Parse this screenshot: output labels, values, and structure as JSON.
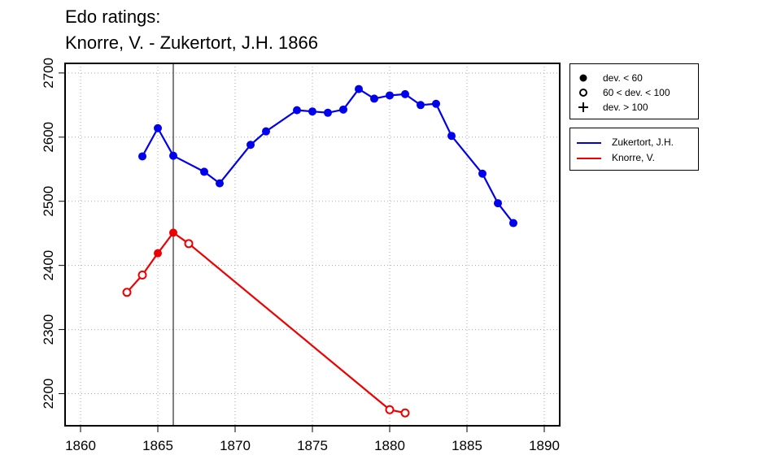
{
  "chart_data": {
    "type": "line",
    "title": "Edo ratings:",
    "subtitle": "Knorre, V. - Zukertort, J.H. 1866",
    "xlabel": "",
    "ylabel": "",
    "xlim": [
      1859,
      1891
    ],
    "ylim": [
      2150,
      2715
    ],
    "x_ticks": [
      1860,
      1865,
      1870,
      1875,
      1880,
      1885,
      1890
    ],
    "y_ticks": [
      2200,
      2300,
      2400,
      2500,
      2600,
      2700
    ],
    "grid": true,
    "reference_line_x": 1866,
    "marker_legend": [
      {
        "marker": "filled-circle",
        "label": "dev. < 60"
      },
      {
        "marker": "open-circle",
        "label": "60 < dev. < 100"
      },
      {
        "marker": "plus",
        "label": "dev. > 100"
      }
    ],
    "series": [
      {
        "name": "Zukertort, J.H.",
        "color": "#0000ee",
        "points": [
          {
            "x": 1864,
            "y": 2570,
            "marker": "filled"
          },
          {
            "x": 1865,
            "y": 2614,
            "marker": "filled"
          },
          {
            "x": 1866,
            "y": 2571,
            "marker": "filled"
          },
          {
            "x": 1868,
            "y": 2546,
            "marker": "filled"
          },
          {
            "x": 1869,
            "y": 2528,
            "marker": "filled"
          },
          {
            "x": 1871,
            "y": 2588,
            "marker": "filled"
          },
          {
            "x": 1872,
            "y": 2609,
            "marker": "filled"
          },
          {
            "x": 1874,
            "y": 2642,
            "marker": "filled"
          },
          {
            "x": 1875,
            "y": 2640,
            "marker": "filled"
          },
          {
            "x": 1876,
            "y": 2638,
            "marker": "filled"
          },
          {
            "x": 1877,
            "y": 2643,
            "marker": "filled"
          },
          {
            "x": 1878,
            "y": 2675,
            "marker": "filled"
          },
          {
            "x": 1879,
            "y": 2660,
            "marker": "filled"
          },
          {
            "x": 1880,
            "y": 2665,
            "marker": "filled"
          },
          {
            "x": 1881,
            "y": 2667,
            "marker": "filled"
          },
          {
            "x": 1882,
            "y": 2650,
            "marker": "filled"
          },
          {
            "x": 1883,
            "y": 2652,
            "marker": "filled"
          },
          {
            "x": 1884,
            "y": 2602,
            "marker": "filled"
          },
          {
            "x": 1886,
            "y": 2543,
            "marker": "filled"
          },
          {
            "x": 1887,
            "y": 2497,
            "marker": "filled"
          },
          {
            "x": 1888,
            "y": 2466,
            "marker": "filled"
          }
        ]
      },
      {
        "name": "Knorre, V.",
        "color": "#ee0000",
        "points": [
          {
            "x": 1863,
            "y": 2358,
            "marker": "open"
          },
          {
            "x": 1864,
            "y": 2385,
            "marker": "open"
          },
          {
            "x": 1865,
            "y": 2419,
            "marker": "filled"
          },
          {
            "x": 1866,
            "y": 2451,
            "marker": "filled"
          },
          {
            "x": 1867,
            "y": 2434,
            "marker": "open"
          },
          {
            "x": 1880,
            "y": 2175,
            "marker": "open"
          },
          {
            "x": 1881,
            "y": 2170,
            "marker": "open"
          }
        ]
      }
    ]
  }
}
